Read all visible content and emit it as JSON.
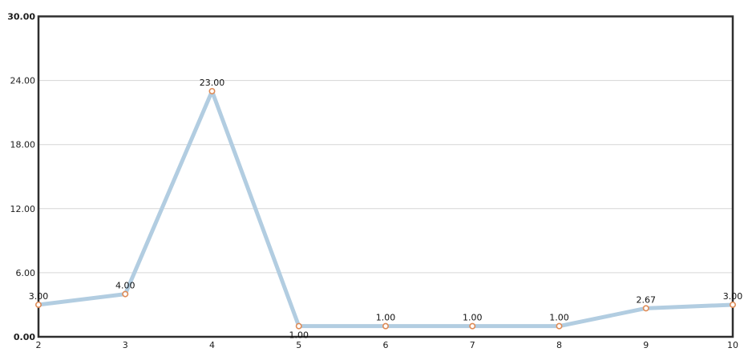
{
  "chart_data": {
    "type": "line",
    "title": "",
    "xlabel": "",
    "ylabel": "",
    "x": [
      2,
      3,
      4,
      5,
      6,
      7,
      8,
      9,
      10
    ],
    "values": [
      3,
      4,
      23,
      1,
      1,
      1,
      1,
      2.67,
      3
    ],
    "point_labels": [
      "3.00",
      "4.00",
      "23.00",
      "1.00",
      "1.00",
      "1.00",
      "1.00",
      "2.67",
      "3.00"
    ],
    "point_label_positions": [
      "above",
      "above",
      "above",
      "below",
      "above",
      "above",
      "above",
      "above",
      "above"
    ],
    "x_tick_labels": [
      "2",
      "3",
      "4",
      "5",
      "6",
      "7",
      "8",
      "9",
      "10"
    ],
    "y_ticks": [
      0,
      6,
      12,
      18,
      24,
      30
    ],
    "y_tick_labels": [
      "0.00",
      "6.00",
      "12.00",
      "18.00",
      "24.00",
      "30.00"
    ],
    "y_tick_bold": [
      true,
      false,
      false,
      false,
      false,
      true
    ],
    "xlim": [
      2,
      10
    ],
    "ylim": [
      0,
      30
    ],
    "grid": "horizontal",
    "legend": "none",
    "colors": {
      "line": "#b2cde1",
      "marker_stroke": "#df8c57",
      "marker_fill": "#ffffff",
      "axis_border": "#2e2e2e",
      "gridline": "#d6d6d6",
      "tick_label": "#1c1c1c",
      "point_label": "#111111",
      "background": "#ffffff"
    }
  }
}
